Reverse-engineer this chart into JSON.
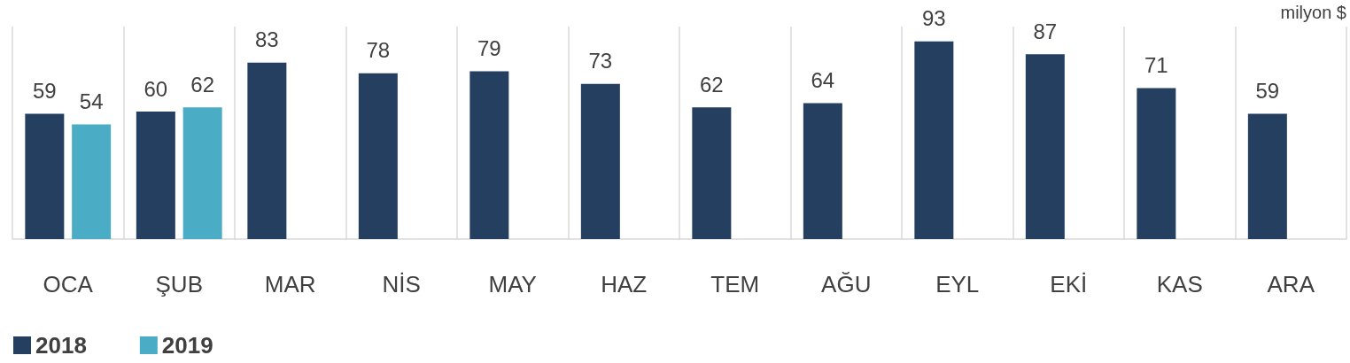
{
  "chart_data": {
    "type": "bar",
    "ylabel": "milyon $",
    "categories": [
      "OCA",
      "ŞUB",
      "MAR",
      "NİS",
      "MAY",
      "HAZ",
      "TEM",
      "AĞU",
      "EYL",
      "EKİ",
      "KAS",
      "ARA"
    ],
    "series": [
      {
        "name": "2018",
        "color": "#243f60",
        "values": [
          59,
          60,
          83,
          78,
          79,
          73,
          62,
          64,
          93,
          87,
          71,
          59
        ]
      },
      {
        "name": "2019",
        "color": "#4bacc6",
        "values": [
          54,
          62,
          null,
          null,
          null,
          null,
          null,
          null,
          null,
          null,
          null,
          null
        ]
      }
    ],
    "data_labels": true,
    "grid": "x",
    "legend": "bottom left",
    "tick_labels": "x"
  }
}
